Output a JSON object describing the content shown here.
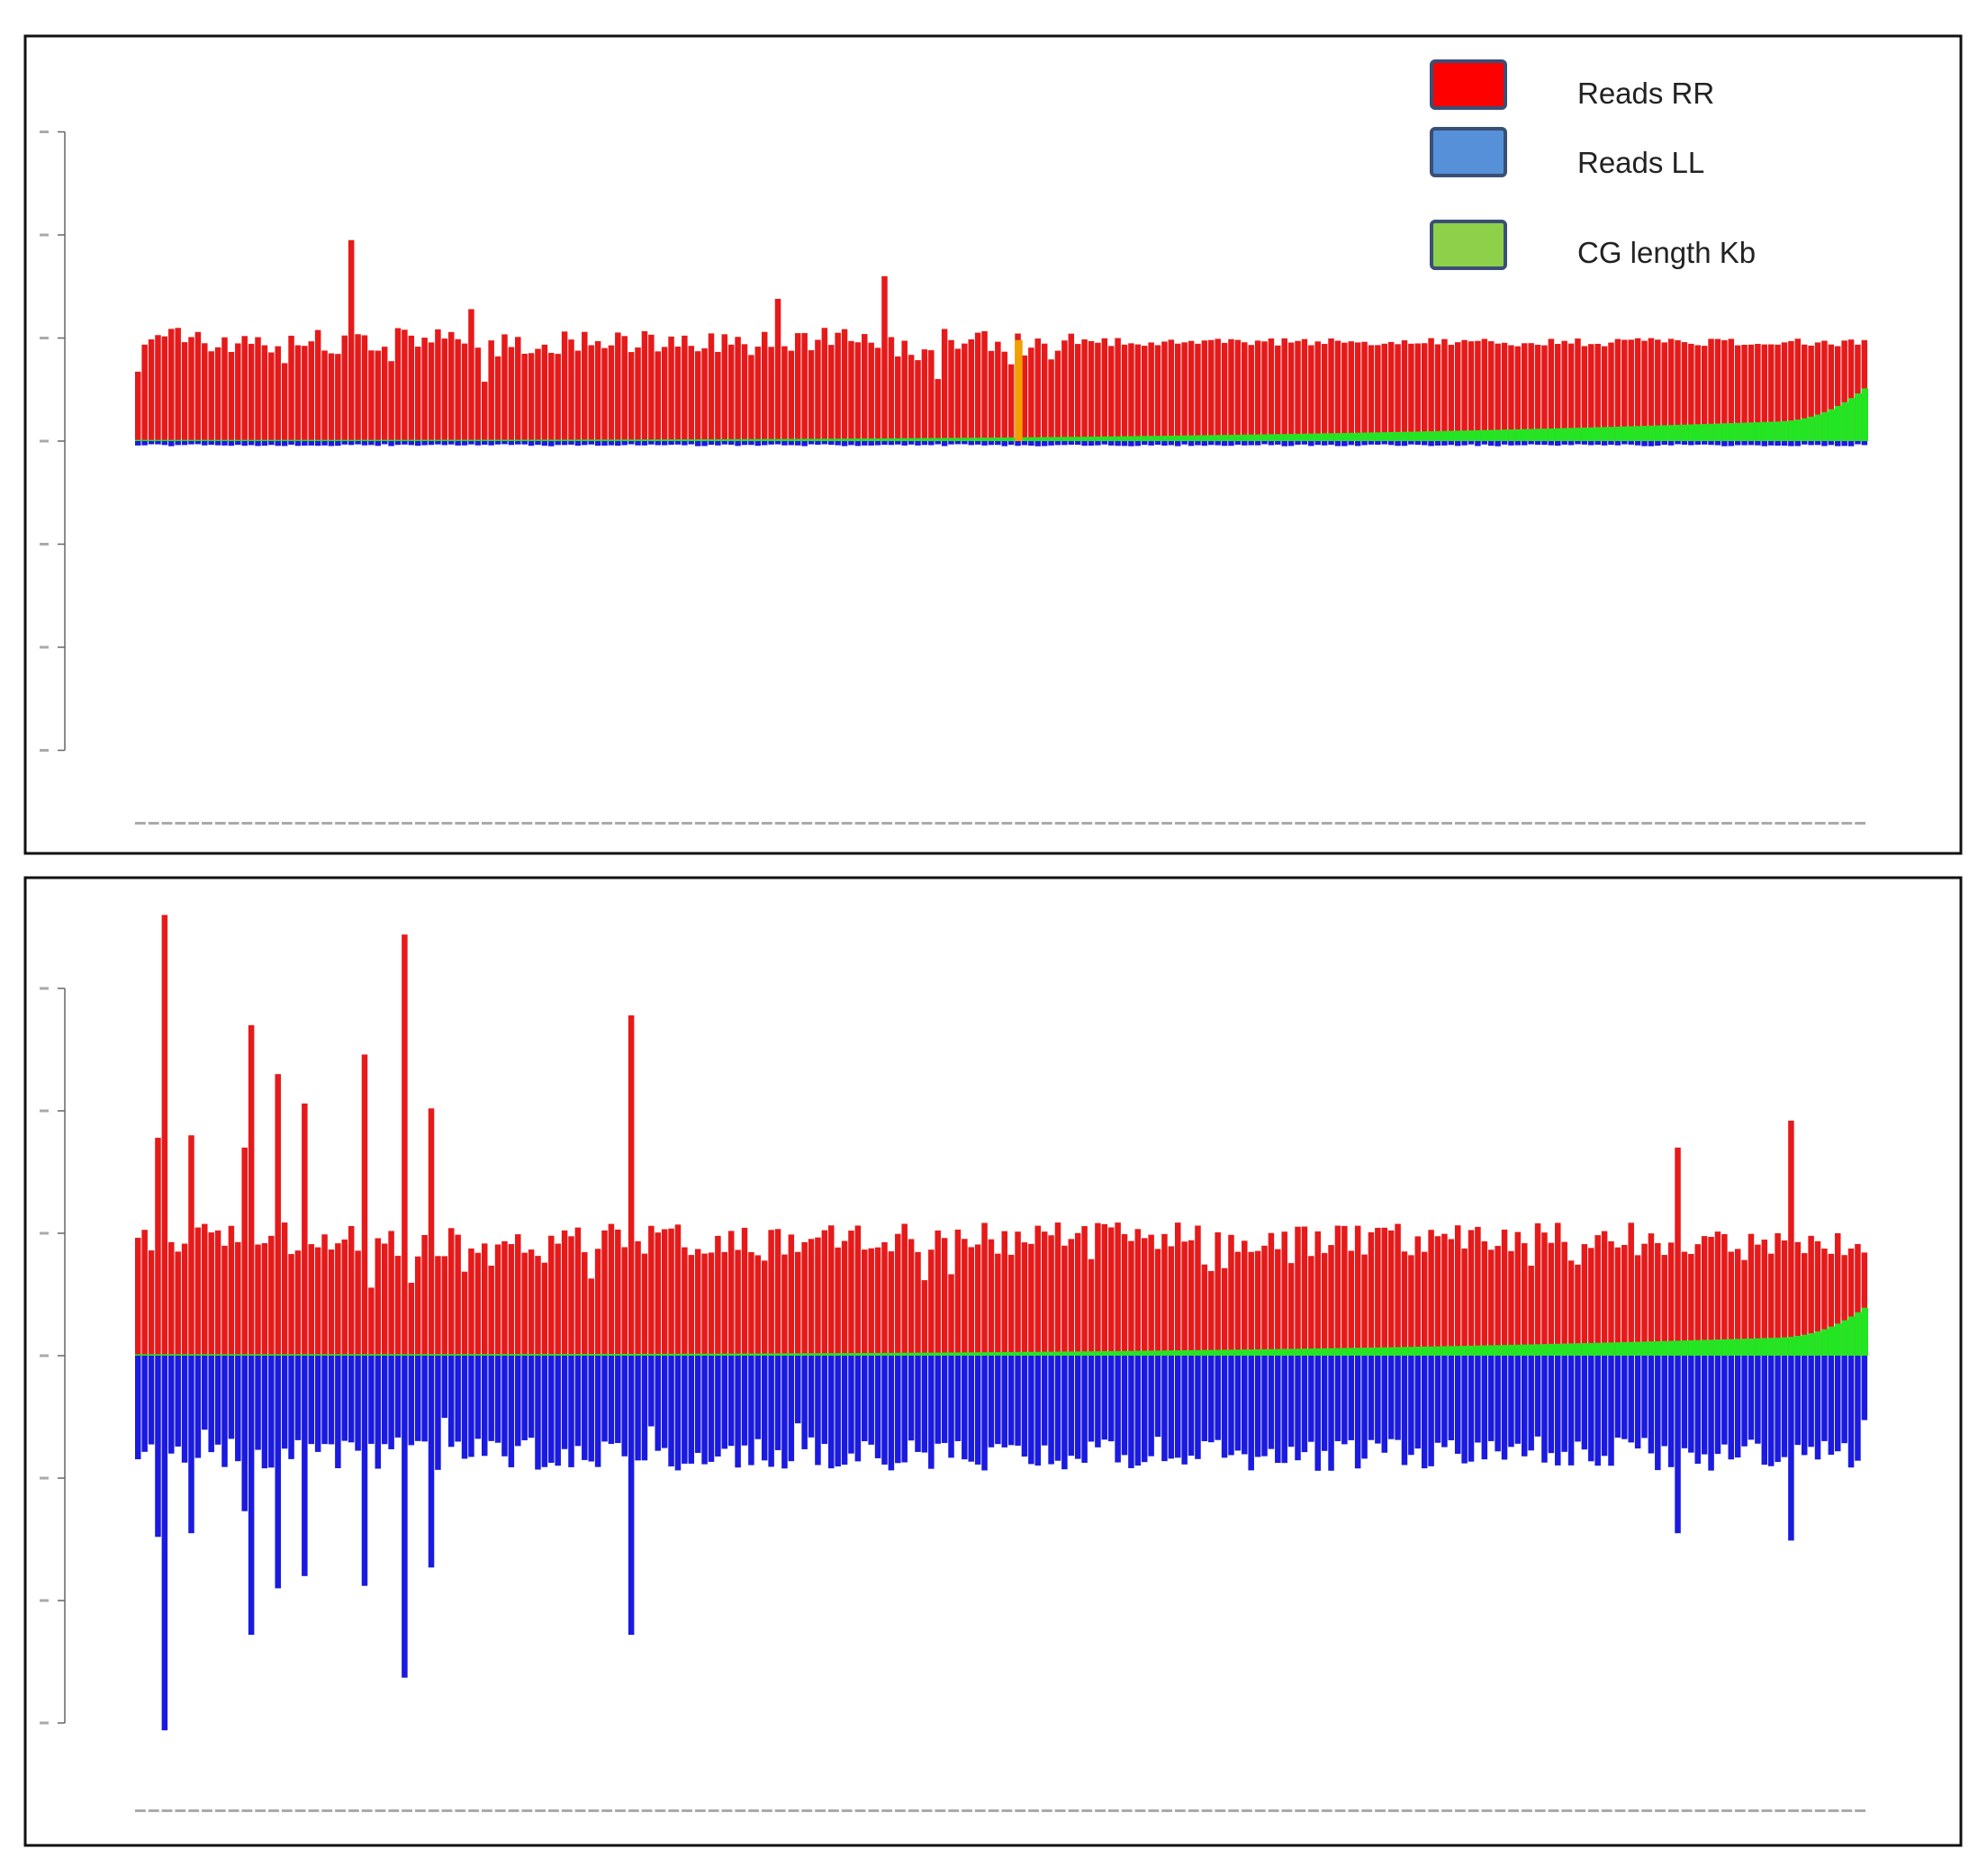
{
  "legend": {
    "items": [
      {
        "label": "Reads RR",
        "color": "#ff0000"
      },
      {
        "label": "Reads LL",
        "color": "#5590d8"
      },
      {
        "label": "CG length Kb",
        "color": "#8ed04a"
      }
    ]
  },
  "colors": {
    "rr": "#e61a1a",
    "ll": "#1a1ae0",
    "cg": "#22e622",
    "highlight": "#f0a000",
    "frame": "#111111",
    "axis": "#666666",
    "tick_label": "#aaaaaa"
  },
  "chart_data": [
    {
      "type": "bar",
      "n_bars": 260,
      "ylim": [
        -300,
        300
      ],
      "yticks": [
        -300,
        -200,
        -100,
        0,
        100,
        200,
        300
      ],
      "baseline": 96,
      "rr_spikes": [
        {
          "index": 32,
          "value": 195
        },
        {
          "index": 96,
          "value": 138
        },
        {
          "index": 112,
          "value": 160
        },
        {
          "index": 50,
          "value": 128
        }
      ],
      "ll_spikes": [],
      "ll_base": 3,
      "cg_end_value": 50,
      "highlight_index": 132,
      "series": [
        {
          "name": "Reads RR",
          "sign": 1
        },
        {
          "name": "Reads LL",
          "sign": -1
        },
        {
          "name": "CG length Kb",
          "sign": 1
        }
      ]
    },
    {
      "type": "bar",
      "n_bars": 260,
      "ylim": [
        -300,
        300
      ],
      "yticks": [
        -300,
        -200,
        -100,
        0,
        100,
        200,
        300
      ],
      "baseline": 95,
      "rr_spikes": [
        {
          "index": 3,
          "value": 178
        },
        {
          "index": 4,
          "value": 360
        },
        {
          "index": 8,
          "value": 180
        },
        {
          "index": 16,
          "value": 170
        },
        {
          "index": 17,
          "value": 270
        },
        {
          "index": 21,
          "value": 230
        },
        {
          "index": 25,
          "value": 206
        },
        {
          "index": 34,
          "value": 246
        },
        {
          "index": 40,
          "value": 344
        },
        {
          "index": 44,
          "value": 202
        },
        {
          "index": 74,
          "value": 278
        },
        {
          "index": 231,
          "value": 170
        },
        {
          "index": 248,
          "value": 192
        }
      ],
      "ll_spikes": [
        {
          "index": 3,
          "value": 148
        },
        {
          "index": 4,
          "value": 306
        },
        {
          "index": 8,
          "value": 145
        },
        {
          "index": 16,
          "value": 127
        },
        {
          "index": 17,
          "value": 228
        },
        {
          "index": 21,
          "value": 190
        },
        {
          "index": 25,
          "value": 180
        },
        {
          "index": 34,
          "value": 188
        },
        {
          "index": 40,
          "value": 263
        },
        {
          "index": 44,
          "value": 173
        },
        {
          "index": 74,
          "value": 228
        },
        {
          "index": 231,
          "value": 145
        },
        {
          "index": 248,
          "value": 151
        }
      ],
      "ll_base": 80,
      "cg_end_value": 38,
      "highlight_index": -1,
      "series": [
        {
          "name": "Reads RR",
          "sign": 1
        },
        {
          "name": "Reads LL",
          "sign": -1
        },
        {
          "name": "CG length Kb",
          "sign": 1
        }
      ]
    }
  ]
}
